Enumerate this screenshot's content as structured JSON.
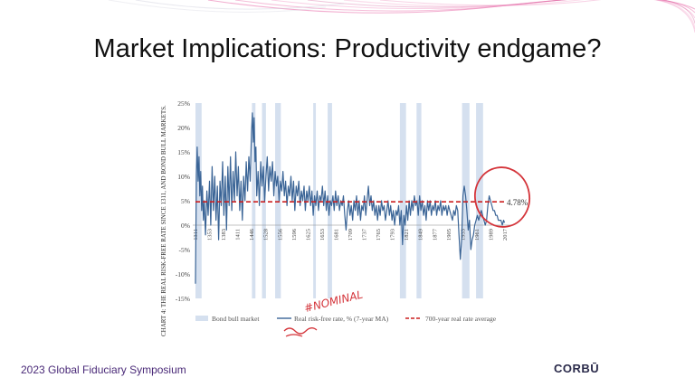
{
  "slide": {
    "title": "Market Implications: Productivity endgame?",
    "footer_left": "2023 Global Fiduciary Symposium",
    "footer_right": "CORBŪ"
  },
  "colors": {
    "line": "#3a6496",
    "band": "#d5e0ef",
    "average": "#cc1f1f",
    "annotation": "#d4343a",
    "deco": "#e86aa8"
  },
  "chart_data": {
    "type": "line",
    "title": "CHART 4: THE REAL RISK-FREE RATE SINCE 1311, AND BOND BULL MARKETS.",
    "ylim": [
      -15,
      25
    ],
    "xlim": [
      1311,
      2018
    ],
    "y_ticks": [
      "25%",
      "20%",
      "15%",
      "10%",
      "5%",
      "0%",
      "-5%",
      "-10%",
      "-15%"
    ],
    "y_tick_values": [
      25,
      20,
      15,
      10,
      5,
      0,
      -5,
      -10,
      -15
    ],
    "x_ticks": [
      "1311",
      "1353",
      "1383",
      "1411",
      "1446",
      "1528",
      "1556",
      "1596",
      "1625",
      "1653",
      "1681",
      "1709",
      "1737",
      "1765",
      "1793",
      "1821",
      "1849",
      "1877",
      "1905",
      "1933",
      "1961",
      "1989",
      "2017"
    ],
    "bull_markets": [
      [
        1311,
        1325
      ],
      [
        1440,
        1448
      ],
      [
        1463,
        1472
      ],
      [
        1493,
        1506
      ],
      [
        1580,
        1586
      ],
      [
        1613,
        1623
      ],
      [
        1778,
        1792
      ],
      [
        1816,
        1827
      ],
      [
        1920,
        1937
      ],
      [
        1952,
        1968
      ]
    ],
    "average": 4.78,
    "average_label": "4.78%",
    "series_points": [
      [
        1311,
        -12
      ],
      [
        1313,
        10
      ],
      [
        1315,
        16
      ],
      [
        1317,
        9
      ],
      [
        1319,
        14
      ],
      [
        1321,
        6
      ],
      [
        1323,
        11
      ],
      [
        1325,
        3
      ],
      [
        1327,
        8
      ],
      [
        1329,
        1
      ],
      [
        1331,
        5
      ],
      [
        1334,
        -2
      ],
      [
        1337,
        7
      ],
      [
        1340,
        2
      ],
      [
        1343,
        9
      ],
      [
        1346,
        0
      ],
      [
        1349,
        12
      ],
      [
        1352,
        3
      ],
      [
        1355,
        10
      ],
      [
        1358,
        1
      ],
      [
        1361,
        8
      ],
      [
        1364,
        -3
      ],
      [
        1367,
        9
      ],
      [
        1370,
        4
      ],
      [
        1373,
        13
      ],
      [
        1376,
        2
      ],
      [
        1379,
        10
      ],
      [
        1382,
        -1
      ],
      [
        1385,
        12
      ],
      [
        1388,
        4
      ],
      [
        1391,
        14
      ],
      [
        1394,
        3
      ],
      [
        1397,
        11
      ],
      [
        1400,
        5
      ],
      [
        1403,
        15
      ],
      [
        1406,
        6
      ],
      [
        1409,
        12
      ],
      [
        1412,
        3
      ],
      [
        1415,
        9
      ],
      [
        1418,
        1
      ],
      [
        1421,
        10
      ],
      [
        1424,
        5
      ],
      [
        1427,
        13
      ],
      [
        1430,
        7
      ],
      [
        1433,
        14
      ],
      [
        1436,
        9
      ],
      [
        1439,
        19
      ],
      [
        1441,
        23
      ],
      [
        1443,
        17
      ],
      [
        1445,
        22
      ],
      [
        1447,
        13
      ],
      [
        1449,
        16
      ],
      [
        1451,
        6
      ],
      [
        1454,
        11
      ],
      [
        1457,
        4
      ],
      [
        1460,
        13
      ],
      [
        1463,
        8
      ],
      [
        1466,
        12
      ],
      [
        1469,
        5
      ],
      [
        1472,
        10
      ],
      [
        1475,
        14
      ],
      [
        1478,
        7
      ],
      [
        1481,
        12
      ],
      [
        1484,
        9
      ],
      [
        1487,
        13
      ],
      [
        1490,
        6
      ],
      [
        1493,
        11
      ],
      [
        1496,
        8
      ],
      [
        1499,
        10
      ],
      [
        1502,
        5
      ],
      [
        1505,
        9
      ],
      [
        1508,
        7
      ],
      [
        1511,
        11
      ],
      [
        1514,
        6
      ],
      [
        1517,
        9
      ],
      [
        1520,
        4
      ],
      [
        1523,
        8
      ],
      [
        1526,
        6
      ],
      [
        1529,
        10
      ],
      [
        1532,
        5
      ],
      [
        1535,
        9
      ],
      [
        1538,
        3
      ],
      [
        1541,
        8
      ],
      [
        1544,
        6
      ],
      [
        1547,
        9
      ],
      [
        1550,
        4
      ],
      [
        1553,
        7
      ],
      [
        1556,
        5
      ],
      [
        1559,
        8
      ],
      [
        1562,
        3
      ],
      [
        1565,
        7
      ],
      [
        1568,
        5
      ],
      [
        1571,
        8
      ],
      [
        1574,
        4
      ],
      [
        1577,
        7
      ],
      [
        1580,
        2
      ],
      [
        1583,
        6
      ],
      [
        1586,
        4
      ],
      [
        1589,
        7
      ],
      [
        1592,
        3
      ],
      [
        1595,
        6
      ],
      [
        1598,
        5
      ],
      [
        1601,
        8
      ],
      [
        1604,
        4
      ],
      [
        1607,
        7
      ],
      [
        1610,
        3
      ],
      [
        1613,
        6
      ],
      [
        1616,
        2
      ],
      [
        1619,
        5
      ],
      [
        1622,
        4
      ],
      [
        1625,
        6
      ],
      [
        1628,
        3
      ],
      [
        1631,
        7
      ],
      [
        1634,
        4
      ],
      [
        1637,
        6
      ],
      [
        1640,
        3
      ],
      [
        1643,
        5
      ],
      [
        1646,
        4
      ],
      [
        1649,
        6
      ],
      [
        1652,
        2
      ],
      [
        1655,
        -1
      ],
      [
        1658,
        3
      ],
      [
        1661,
        5
      ],
      [
        1664,
        2
      ],
      [
        1667,
        4
      ],
      [
        1670,
        1
      ],
      [
        1673,
        5
      ],
      [
        1676,
        3
      ],
      [
        1679,
        6
      ],
      [
        1682,
        2
      ],
      [
        1685,
        5
      ],
      [
        1688,
        1
      ],
      [
        1691,
        4
      ],
      [
        1694,
        3
      ],
      [
        1697,
        6
      ],
      [
        1700,
        2
      ],
      [
        1703,
        5
      ],
      [
        1706,
        8
      ],
      [
        1709,
        4
      ],
      [
        1712,
        6
      ],
      [
        1715,
        3
      ],
      [
        1718,
        5
      ],
      [
        1721,
        2
      ],
      [
        1724,
        4
      ],
      [
        1727,
        1
      ],
      [
        1730,
        4
      ],
      [
        1733,
        2
      ],
      [
        1736,
        5
      ],
      [
        1739,
        3
      ],
      [
        1742,
        4
      ],
      [
        1745,
        1
      ],
      [
        1748,
        3
      ],
      [
        1751,
        5
      ],
      [
        1754,
        2
      ],
      [
        1757,
        4
      ],
      [
        1760,
        1
      ],
      [
        1763,
        3
      ],
      [
        1766,
        0
      ],
      [
        1769,
        3
      ],
      [
        1772,
        2
      ],
      [
        1775,
        4
      ],
      [
        1778,
        0
      ],
      [
        1781,
        3
      ],
      [
        1784,
        -4
      ],
      [
        1787,
        2
      ],
      [
        1790,
        0
      ],
      [
        1793,
        4
      ],
      [
        1796,
        1
      ],
      [
        1799,
        5
      ],
      [
        1802,
        2
      ],
      [
        1805,
        5
      ],
      [
        1808,
        3
      ],
      [
        1811,
        6
      ],
      [
        1814,
        4
      ],
      [
        1817,
        5
      ],
      [
        1820,
        2
      ],
      [
        1823,
        6
      ],
      [
        1826,
        3
      ],
      [
        1829,
        5
      ],
      [
        1832,
        2
      ],
      [
        1835,
        4
      ],
      [
        1838,
        1
      ],
      [
        1841,
        5
      ],
      [
        1844,
        3
      ],
      [
        1847,
        5
      ],
      [
        1850,
        2
      ],
      [
        1853,
        4
      ],
      [
        1856,
        3
      ],
      [
        1859,
        5
      ],
      [
        1862,
        2
      ],
      [
        1865,
        4
      ],
      [
        1868,
        3
      ],
      [
        1871,
        5
      ],
      [
        1874,
        2
      ],
      [
        1877,
        4
      ],
      [
        1880,
        3
      ],
      [
        1883,
        4
      ],
      [
        1886,
        2
      ],
      [
        1889,
        4
      ],
      [
        1892,
        3
      ],
      [
        1895,
        2
      ],
      [
        1898,
        1
      ],
      [
        1901,
        3
      ],
      [
        1904,
        2
      ],
      [
        1907,
        4
      ],
      [
        1910,
        3
      ],
      [
        1913,
        -2
      ],
      [
        1916,
        -7
      ],
      [
        1919,
        -3
      ],
      [
        1922,
        6
      ],
      [
        1925,
        8
      ],
      [
        1928,
        6
      ],
      [
        1931,
        3
      ],
      [
        1934,
        -1
      ],
      [
        1937,
        1
      ],
      [
        1940,
        -5
      ],
      [
        1943,
        -3
      ],
      [
        1946,
        -2
      ],
      [
        1949,
        0
      ],
      [
        1952,
        1
      ],
      [
        1955,
        2
      ],
      [
        1958,
        1
      ],
      [
        1961,
        2
      ],
      [
        1964,
        3
      ],
      [
        1967,
        2
      ],
      [
        1970,
        1
      ],
      [
        1973,
        0
      ],
      [
        1976,
        1
      ],
      [
        1979,
        4
      ],
      [
        1982,
        6
      ],
      [
        1985,
        5
      ],
      [
        1988,
        4
      ],
      [
        1991,
        3
      ],
      [
        1994,
        3
      ],
      [
        1997,
        2
      ],
      [
        2000,
        2
      ],
      [
        2003,
        1
      ],
      [
        2006,
        1
      ],
      [
        2009,
        1
      ],
      [
        2012,
        0
      ],
      [
        2015,
        1
      ],
      [
        2017,
        0.5
      ]
    ],
    "legend": [
      {
        "type": "band",
        "label": "Bond bull market"
      },
      {
        "type": "line",
        "label": "Real risk-free rate, % (7-year MA)"
      },
      {
        "type": "dash",
        "label": "700-year real rate average"
      }
    ],
    "handwritten_note": "#NOMINAL"
  }
}
